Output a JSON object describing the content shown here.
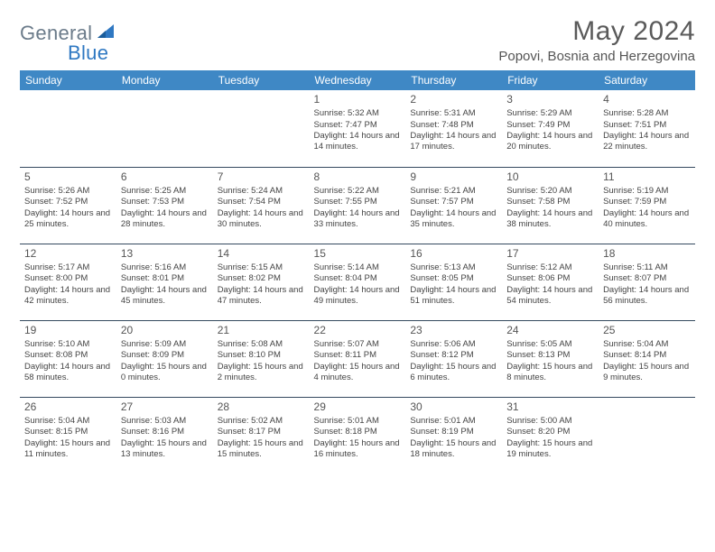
{
  "brand": {
    "part1": "General",
    "part2": "Blue"
  },
  "title": "May 2024",
  "location": "Popovi, Bosnia and Herzegovina",
  "colors": {
    "header_bg": "#3f88c5",
    "header_text": "#ffffff",
    "rule": "#34495e",
    "body_text": "#444444",
    "title_text": "#5a5a5a",
    "logo_general": "#6b7b8a",
    "logo_blue": "#2f78c2",
    "background": "#ffffff"
  },
  "weekdays": [
    "Sunday",
    "Monday",
    "Tuesday",
    "Wednesday",
    "Thursday",
    "Friday",
    "Saturday"
  ],
  "weeks": [
    [
      null,
      null,
      null,
      {
        "n": "1",
        "sr": "5:32 AM",
        "ss": "7:47 PM",
        "dl": "14 hours and 14 minutes."
      },
      {
        "n": "2",
        "sr": "5:31 AM",
        "ss": "7:48 PM",
        "dl": "14 hours and 17 minutes."
      },
      {
        "n": "3",
        "sr": "5:29 AM",
        "ss": "7:49 PM",
        "dl": "14 hours and 20 minutes."
      },
      {
        "n": "4",
        "sr": "5:28 AM",
        "ss": "7:51 PM",
        "dl": "14 hours and 22 minutes."
      }
    ],
    [
      {
        "n": "5",
        "sr": "5:26 AM",
        "ss": "7:52 PM",
        "dl": "14 hours and 25 minutes."
      },
      {
        "n": "6",
        "sr": "5:25 AM",
        "ss": "7:53 PM",
        "dl": "14 hours and 28 minutes."
      },
      {
        "n": "7",
        "sr": "5:24 AM",
        "ss": "7:54 PM",
        "dl": "14 hours and 30 minutes."
      },
      {
        "n": "8",
        "sr": "5:22 AM",
        "ss": "7:55 PM",
        "dl": "14 hours and 33 minutes."
      },
      {
        "n": "9",
        "sr": "5:21 AM",
        "ss": "7:57 PM",
        "dl": "14 hours and 35 minutes."
      },
      {
        "n": "10",
        "sr": "5:20 AM",
        "ss": "7:58 PM",
        "dl": "14 hours and 38 minutes."
      },
      {
        "n": "11",
        "sr": "5:19 AM",
        "ss": "7:59 PM",
        "dl": "14 hours and 40 minutes."
      }
    ],
    [
      {
        "n": "12",
        "sr": "5:17 AM",
        "ss": "8:00 PM",
        "dl": "14 hours and 42 minutes."
      },
      {
        "n": "13",
        "sr": "5:16 AM",
        "ss": "8:01 PM",
        "dl": "14 hours and 45 minutes."
      },
      {
        "n": "14",
        "sr": "5:15 AM",
        "ss": "8:02 PM",
        "dl": "14 hours and 47 minutes."
      },
      {
        "n": "15",
        "sr": "5:14 AM",
        "ss": "8:04 PM",
        "dl": "14 hours and 49 minutes."
      },
      {
        "n": "16",
        "sr": "5:13 AM",
        "ss": "8:05 PM",
        "dl": "14 hours and 51 minutes."
      },
      {
        "n": "17",
        "sr": "5:12 AM",
        "ss": "8:06 PM",
        "dl": "14 hours and 54 minutes."
      },
      {
        "n": "18",
        "sr": "5:11 AM",
        "ss": "8:07 PM",
        "dl": "14 hours and 56 minutes."
      }
    ],
    [
      {
        "n": "19",
        "sr": "5:10 AM",
        "ss": "8:08 PM",
        "dl": "14 hours and 58 minutes."
      },
      {
        "n": "20",
        "sr": "5:09 AM",
        "ss": "8:09 PM",
        "dl": "15 hours and 0 minutes."
      },
      {
        "n": "21",
        "sr": "5:08 AM",
        "ss": "8:10 PM",
        "dl": "15 hours and 2 minutes."
      },
      {
        "n": "22",
        "sr": "5:07 AM",
        "ss": "8:11 PM",
        "dl": "15 hours and 4 minutes."
      },
      {
        "n": "23",
        "sr": "5:06 AM",
        "ss": "8:12 PM",
        "dl": "15 hours and 6 minutes."
      },
      {
        "n": "24",
        "sr": "5:05 AM",
        "ss": "8:13 PM",
        "dl": "15 hours and 8 minutes."
      },
      {
        "n": "25",
        "sr": "5:04 AM",
        "ss": "8:14 PM",
        "dl": "15 hours and 9 minutes."
      }
    ],
    [
      {
        "n": "26",
        "sr": "5:04 AM",
        "ss": "8:15 PM",
        "dl": "15 hours and 11 minutes."
      },
      {
        "n": "27",
        "sr": "5:03 AM",
        "ss": "8:16 PM",
        "dl": "15 hours and 13 minutes."
      },
      {
        "n": "28",
        "sr": "5:02 AM",
        "ss": "8:17 PM",
        "dl": "15 hours and 15 minutes."
      },
      {
        "n": "29",
        "sr": "5:01 AM",
        "ss": "8:18 PM",
        "dl": "15 hours and 16 minutes."
      },
      {
        "n": "30",
        "sr": "5:01 AM",
        "ss": "8:19 PM",
        "dl": "15 hours and 18 minutes."
      },
      {
        "n": "31",
        "sr": "5:00 AM",
        "ss": "8:20 PM",
        "dl": "15 hours and 19 minutes."
      },
      null
    ]
  ],
  "labels": {
    "sunrise": "Sunrise:",
    "sunset": "Sunset:",
    "daylight": "Daylight:"
  }
}
